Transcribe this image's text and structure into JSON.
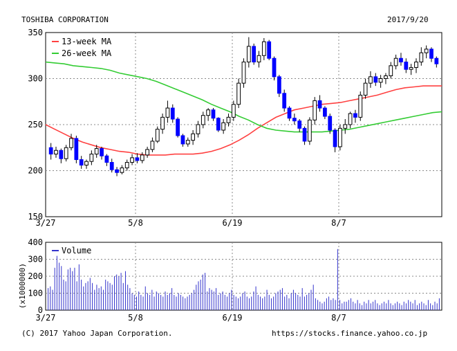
{
  "header": {
    "company": "TOSHIBA CORPORATION",
    "date": "2017/9/20"
  },
  "footer": {
    "copyright": "(C) 2017 Yahoo Japan Corporation.",
    "source": "https://stocks.finance.yahoo.co.jp"
  },
  "chart_data": [
    {
      "type": "candlestick",
      "x_ticks": [
        "3/27",
        "5/8",
        "6/19",
        "8/7"
      ],
      "y_ticks": [
        150,
        200,
        250,
        300,
        350
      ],
      "ylim": [
        150,
        350
      ],
      "grid": true,
      "legend": {
        "placement": "top-left",
        "items": [
          "13-week MA",
          "26-week MA"
        ]
      },
      "colors": {
        "up": "#ffffff",
        "down": "#0000ff",
        "ma13": "#ff4040",
        "ma26": "#33cc33"
      },
      "ohlc": [
        {
          "o": 225,
          "h": 230,
          "l": 212,
          "c": 218
        },
        {
          "o": 218,
          "h": 226,
          "l": 214,
          "c": 222
        },
        {
          "o": 222,
          "h": 224,
          "l": 208,
          "c": 213
        },
        {
          "o": 213,
          "h": 228,
          "l": 210,
          "c": 225
        },
        {
          "o": 225,
          "h": 240,
          "l": 222,
          "c": 235
        },
        {
          "o": 235,
          "h": 238,
          "l": 208,
          "c": 212
        },
        {
          "o": 212,
          "h": 216,
          "l": 202,
          "c": 206
        },
        {
          "o": 206,
          "h": 212,
          "l": 202,
          "c": 210
        },
        {
          "o": 210,
          "h": 222,
          "l": 206,
          "c": 218
        },
        {
          "o": 218,
          "h": 228,
          "l": 214,
          "c": 224
        },
        {
          "o": 224,
          "h": 226,
          "l": 212,
          "c": 216
        },
        {
          "o": 216,
          "h": 218,
          "l": 205,
          "c": 209
        },
        {
          "o": 209,
          "h": 213,
          "l": 198,
          "c": 201
        },
        {
          "o": 201,
          "h": 204,
          "l": 194,
          "c": 198
        },
        {
          "o": 198,
          "h": 206,
          "l": 196,
          "c": 203
        },
        {
          "o": 203,
          "h": 212,
          "l": 200,
          "c": 209
        },
        {
          "o": 209,
          "h": 218,
          "l": 206,
          "c": 214
        },
        {
          "o": 214,
          "h": 219,
          "l": 208,
          "c": 211
        },
        {
          "o": 211,
          "h": 220,
          "l": 208,
          "c": 217
        },
        {
          "o": 217,
          "h": 226,
          "l": 214,
          "c": 223
        },
        {
          "o": 223,
          "h": 236,
          "l": 220,
          "c": 232
        },
        {
          "o": 232,
          "h": 248,
          "l": 230,
          "c": 245
        },
        {
          "o": 245,
          "h": 262,
          "l": 240,
          "c": 258
        },
        {
          "o": 258,
          "h": 276,
          "l": 252,
          "c": 268
        },
        {
          "o": 268,
          "h": 272,
          "l": 252,
          "c": 256
        },
        {
          "o": 256,
          "h": 258,
          "l": 236,
          "c": 238
        },
        {
          "o": 238,
          "h": 240,
          "l": 226,
          "c": 229
        },
        {
          "o": 229,
          "h": 236,
          "l": 226,
          "c": 233
        },
        {
          "o": 233,
          "h": 244,
          "l": 228,
          "c": 240
        },
        {
          "o": 240,
          "h": 254,
          "l": 236,
          "c": 250
        },
        {
          "o": 250,
          "h": 264,
          "l": 246,
          "c": 260
        },
        {
          "o": 260,
          "h": 268,
          "l": 254,
          "c": 266
        },
        {
          "o": 266,
          "h": 268,
          "l": 254,
          "c": 257
        },
        {
          "o": 257,
          "h": 258,
          "l": 242,
          "c": 244
        },
        {
          "o": 244,
          "h": 256,
          "l": 240,
          "c": 252
        },
        {
          "o": 252,
          "h": 262,
          "l": 248,
          "c": 258
        },
        {
          "o": 258,
          "h": 276,
          "l": 254,
          "c": 272
        },
        {
          "o": 272,
          "h": 300,
          "l": 268,
          "c": 295
        },
        {
          "o": 295,
          "h": 322,
          "l": 290,
          "c": 318
        },
        {
          "o": 318,
          "h": 345,
          "l": 312,
          "c": 335
        },
        {
          "o": 335,
          "h": 338,
          "l": 315,
          "c": 318
        },
        {
          "o": 318,
          "h": 330,
          "l": 312,
          "c": 325
        },
        {
          "o": 325,
          "h": 344,
          "l": 320,
          "c": 340
        },
        {
          "o": 340,
          "h": 342,
          "l": 320,
          "c": 322
        },
        {
          "o": 322,
          "h": 324,
          "l": 298,
          "c": 302
        },
        {
          "o": 302,
          "h": 304,
          "l": 280,
          "c": 284
        },
        {
          "o": 284,
          "h": 288,
          "l": 264,
          "c": 268
        },
        {
          "o": 268,
          "h": 270,
          "l": 254,
          "c": 257
        },
        {
          "o": 257,
          "h": 262,
          "l": 250,
          "c": 254
        },
        {
          "o": 254,
          "h": 256,
          "l": 242,
          "c": 246
        },
        {
          "o": 246,
          "h": 248,
          "l": 228,
          "c": 232
        },
        {
          "o": 232,
          "h": 258,
          "l": 228,
          "c": 255
        },
        {
          "o": 255,
          "h": 280,
          "l": 250,
          "c": 276
        },
        {
          "o": 276,
          "h": 282,
          "l": 264,
          "c": 268
        },
        {
          "o": 268,
          "h": 270,
          "l": 256,
          "c": 259
        },
        {
          "o": 259,
          "h": 262,
          "l": 240,
          "c": 244
        },
        {
          "o": 244,
          "h": 246,
          "l": 220,
          "c": 226
        },
        {
          "o": 226,
          "h": 250,
          "l": 222,
          "c": 246
        },
        {
          "o": 246,
          "h": 256,
          "l": 240,
          "c": 250
        },
        {
          "o": 250,
          "h": 264,
          "l": 246,
          "c": 262
        },
        {
          "o": 262,
          "h": 266,
          "l": 252,
          "c": 258
        },
        {
          "o": 258,
          "h": 286,
          "l": 254,
          "c": 282
        },
        {
          "o": 282,
          "h": 300,
          "l": 278,
          "c": 295
        },
        {
          "o": 295,
          "h": 308,
          "l": 290,
          "c": 302
        },
        {
          "o": 302,
          "h": 306,
          "l": 292,
          "c": 296
        },
        {
          "o": 296,
          "h": 304,
          "l": 290,
          "c": 300
        },
        {
          "o": 300,
          "h": 306,
          "l": 294,
          "c": 303
        },
        {
          "o": 303,
          "h": 318,
          "l": 300,
          "c": 314
        },
        {
          "o": 314,
          "h": 326,
          "l": 310,
          "c": 322
        },
        {
          "o": 322,
          "h": 328,
          "l": 314,
          "c": 318
        },
        {
          "o": 318,
          "h": 322,
          "l": 306,
          "c": 310
        },
        {
          "o": 310,
          "h": 316,
          "l": 304,
          "c": 312
        },
        {
          "o": 312,
          "h": 322,
          "l": 306,
          "c": 318
        },
        {
          "o": 318,
          "h": 334,
          "l": 314,
          "c": 328
        },
        {
          "o": 328,
          "h": 336,
          "l": 322,
          "c": 332
        },
        {
          "o": 332,
          "h": 334,
          "l": 318,
          "c": 322
        },
        {
          "o": 322,
          "h": 324,
          "l": 312,
          "c": 316
        }
      ],
      "ma13": [
        250,
        245,
        240,
        235,
        231,
        228,
        225,
        223,
        221,
        220,
        218,
        217,
        217,
        217,
        218,
        218,
        218,
        219,
        221,
        224,
        228,
        233,
        239,
        246,
        252,
        258,
        262,
        266,
        268,
        270,
        272,
        273,
        274,
        276,
        278,
        280,
        282,
        285,
        288,
        290,
        291,
        292,
        292,
        292
      ],
      "ma26": [
        318,
        317,
        316,
        314,
        313,
        312,
        311,
        309,
        306,
        304,
        302,
        300,
        297,
        293,
        289,
        285,
        281,
        277,
        272,
        268,
        264,
        259,
        255,
        250,
        246,
        244,
        243,
        242,
        242,
        242,
        242,
        243,
        244,
        245,
        247,
        249,
        251,
        253,
        255,
        257,
        259,
        261,
        263,
        264
      ]
    },
    {
      "type": "bar",
      "title": "Volume",
      "y_ticks": [
        0,
        100,
        200,
        300,
        400
      ],
      "ylim": [
        0,
        400
      ],
      "ylabel": "(x1000000)",
      "x_ticks": [
        "3/27",
        "5/8",
        "6/19",
        "8/7"
      ],
      "legend": {
        "placement": "top-left",
        "items": [
          "Volume"
        ]
      },
      "colors": {
        "bar": "#3333cc"
      },
      "values": [
        130,
        140,
        120,
        250,
        320,
        280,
        260,
        180,
        170,
        240,
        250,
        230,
        250,
        170,
        270,
        180,
        140,
        160,
        170,
        190,
        160,
        120,
        150,
        130,
        140,
        120,
        180,
        170,
        160,
        150,
        200,
        210,
        200,
        220,
        160,
        230,
        150,
        130,
        100,
        90,
        80,
        110,
        90,
        80,
        140,
        100,
        90,
        120,
        80,
        110,
        100,
        90,
        80,
        110,
        90,
        100,
        130,
        90,
        80,
        100,
        90,
        80,
        70,
        80,
        90,
        100,
        120,
        150,
        170,
        180,
        210,
        220,
        110,
        130,
        120,
        110,
        130,
        90,
        100,
        110,
        90,
        80,
        100,
        120,
        90,
        80,
        70,
        80,
        100,
        110,
        80,
        70,
        80,
        110,
        140,
        90,
        80,
        70,
        80,
        120,
        90,
        70,
        80,
        100,
        110,
        120,
        130,
        80,
        90,
        70,
        100,
        120,
        100,
        90,
        80,
        130,
        80,
        90,
        100,
        120,
        150,
        70,
        60,
        50,
        40,
        50,
        70,
        80,
        60,
        70,
        60,
        360,
        60,
        40,
        50,
        50,
        60,
        70,
        50,
        40,
        60,
        40,
        30,
        50,
        40,
        60,
        40,
        50,
        60,
        40,
        30,
        40,
        50,
        40,
        60,
        40,
        30,
        40,
        50,
        40,
        30,
        50,
        40,
        60,
        50,
        40,
        60,
        30,
        40,
        50,
        40,
        30,
        60,
        40,
        30,
        50,
        40,
        70
      ]
    }
  ]
}
